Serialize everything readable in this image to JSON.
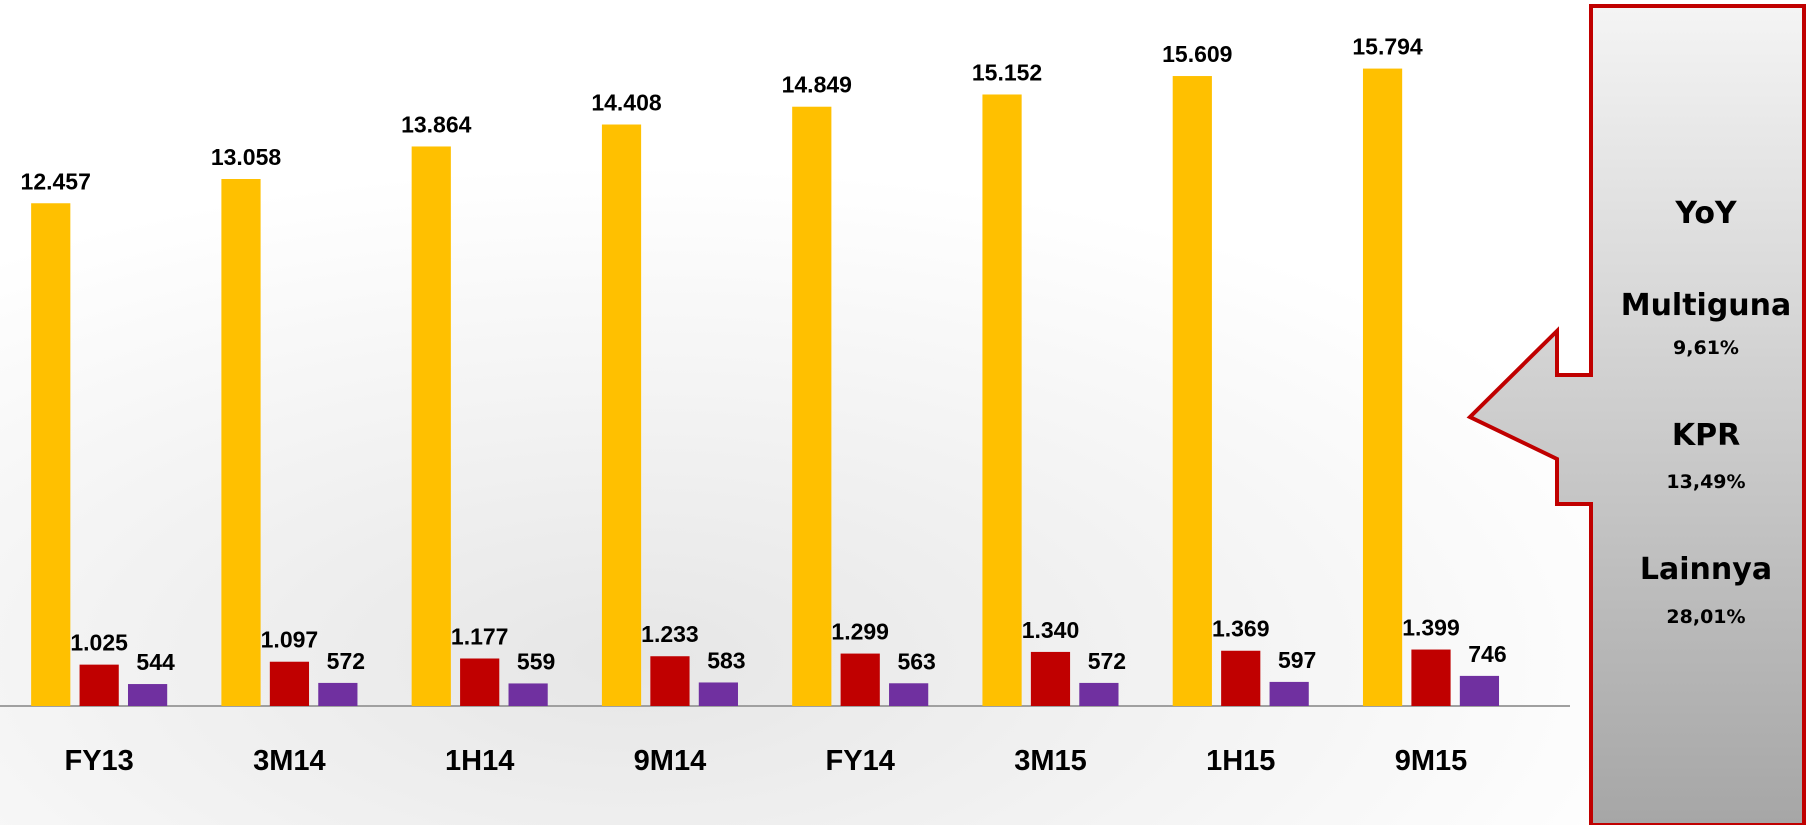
{
  "chart_data": {
    "type": "bar",
    "categories": [
      "FY13",
      "3M14",
      "1H14",
      "9M14",
      "FY14",
      "3M15",
      "1H15",
      "9M15"
    ],
    "series": [
      {
        "color": "#FFC000",
        "values": [
          12457,
          13058,
          13864,
          14408,
          14849,
          15152,
          15609,
          15794
        ],
        "value_labels": [
          "12.457",
          "13.058",
          "13.864",
          "14.408",
          "14.849",
          "15.152",
          "15.609",
          "15.794"
        ]
      },
      {
        "color": "#C00000",
        "values": [
          1025,
          1097,
          1177,
          1233,
          1299,
          1340,
          1369,
          1399
        ],
        "value_labels": [
          "1.025",
          "1.097",
          "1.177",
          "1.233",
          "1.299",
          "1.340",
          "1.369",
          "1.399"
        ]
      },
      {
        "color": "#7030A0",
        "values": [
          544,
          572,
          559,
          583,
          563,
          572,
          597,
          746
        ]
      }
    ],
    "annotations": [
      "YoY",
      "Multiguna",
      "9,61%",
      "KPR",
      "13,49%",
      "Lainnya",
      "28,01%"
    ]
  }
}
